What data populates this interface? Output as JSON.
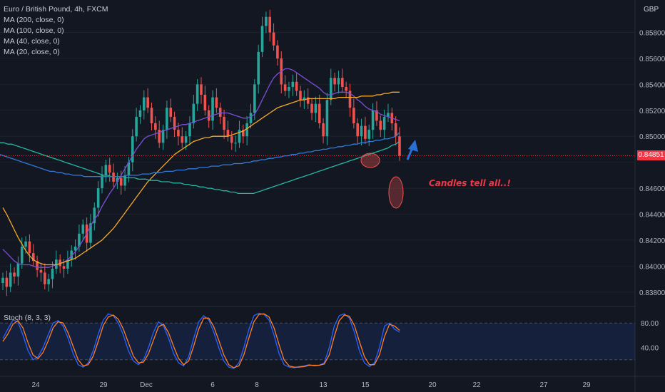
{
  "legend": {
    "title": "Euro / British Pound, 4h, FXCM",
    "indicators": [
      "MA (200, close, 0)",
      "MA (100, close, 0)",
      "MA (40, close, 0)",
      "MA (20, close, 0)"
    ]
  },
  "stoch_label": "Stoch (8, 3, 3)",
  "annotation": "Candles tell all..!",
  "currency": "GBP",
  "current_price": "0.84851",
  "colors": {
    "background": "#131722",
    "up": "#26a69a",
    "down": "#ef5350",
    "ma200": "#2f7bd9",
    "ma100": "#26b5a0",
    "ma40": "#f7a928",
    "ma20": "#7b4fd6",
    "stoch_k": "#2962ff",
    "stoch_d": "#ff7f2a",
    "annotation": "#f23645",
    "arrow": "#2a6fd6"
  },
  "chart_data": {
    "type": "candlestick",
    "price_axis": {
      "ticks": [
        "0.85800",
        "0.85600",
        "0.85400",
        "0.85200",
        "0.85000",
        "0.84800",
        "0.84600",
        "0.84400",
        "0.84200",
        "0.84000",
        "0.83800"
      ],
      "range": [
        0.837,
        0.8605
      ]
    },
    "x_axis": {
      "ticks": [
        "24",
        "29",
        "Dec",
        "6",
        "8",
        "13",
        "15",
        "20",
        "22",
        "27",
        "29"
      ]
    },
    "current_price": 0.84851,
    "closes": [
      0.8391,
      0.8384,
      0.8395,
      0.8392,
      0.8402,
      0.8415,
      0.8419,
      0.841,
      0.8404,
      0.8397,
      0.8395,
      0.8386,
      0.839,
      0.8398,
      0.8405,
      0.84,
      0.8398,
      0.8405,
      0.8412,
      0.8415,
      0.8425,
      0.8432,
      0.8418,
      0.8433,
      0.8445,
      0.846,
      0.847,
      0.8478,
      0.8472,
      0.8465,
      0.8468,
      0.8462,
      0.847,
      0.848,
      0.85,
      0.8515,
      0.852,
      0.853,
      0.8522,
      0.851,
      0.8505,
      0.8495,
      0.8505,
      0.8522,
      0.8515,
      0.8505,
      0.85,
      0.8495,
      0.85,
      0.851,
      0.8525,
      0.854,
      0.8532,
      0.852,
      0.8512,
      0.853,
      0.8522,
      0.8515,
      0.8505,
      0.85,
      0.8495,
      0.8495,
      0.8505,
      0.85,
      0.851,
      0.8518,
      0.854,
      0.8565,
      0.8585,
      0.8592,
      0.858,
      0.857,
      0.856,
      0.854,
      0.8535,
      0.8538,
      0.8542,
      0.8535,
      0.8528,
      0.853,
      0.8525,
      0.8518,
      0.8525,
      0.851,
      0.85,
      0.8528,
      0.8545,
      0.854,
      0.8545,
      0.8538,
      0.8535,
      0.8522,
      0.851,
      0.85,
      0.8508,
      0.8498,
      0.8505,
      0.852,
      0.8512,
      0.8505,
      0.8515,
      0.8518,
      0.851,
      0.85,
      0.8485
    ],
    "series": [
      {
        "name": "MA (20, close, 0)",
        "values": [
          0.8413,
          0.841,
          0.8407,
          0.8404,
          0.8402,
          0.8401,
          0.8401,
          0.8401,
          0.84,
          0.8399,
          0.8399,
          0.8399,
          0.8399,
          0.84,
          0.8401,
          0.8402,
          0.8403,
          0.8405,
          0.8408,
          0.8411,
          0.8415,
          0.842,
          0.8425,
          0.8431,
          0.8436,
          0.844,
          0.8446,
          0.8451,
          0.8456,
          0.846,
          0.8465,
          0.847,
          0.8475,
          0.848,
          0.8485,
          0.849,
          0.8494,
          0.8498,
          0.85,
          0.8501,
          0.8502,
          0.8503,
          0.8504,
          0.8505,
          0.8506,
          0.8507,
          0.8508,
          0.8509,
          0.8509,
          0.851,
          0.8511,
          0.8512,
          0.8513,
          0.8514,
          0.8515,
          0.8516,
          0.8517,
          0.8518,
          0.8518,
          0.8518,
          0.8517,
          0.8516,
          0.8515,
          0.8514,
          0.8514,
          0.8515,
          0.8517,
          0.8522,
          0.8528,
          0.8534,
          0.854,
          0.8545,
          0.8548,
          0.855,
          0.8552,
          0.8552,
          0.8551,
          0.8549,
          0.8547,
          0.8545,
          0.8543,
          0.8541,
          0.8539,
          0.8537,
          0.8534,
          0.8532,
          0.8532,
          0.8533,
          0.8534,
          0.8534,
          0.8534,
          0.8533,
          0.8531,
          0.8528,
          0.8526,
          0.8523,
          0.8521,
          0.852,
          0.8519,
          0.8517,
          0.8516,
          0.8515,
          0.8514,
          0.8513,
          0.8512
        ]
      },
      {
        "name": "MA (40, close, 0)",
        "values": [
          0.8445,
          0.844,
          0.8434,
          0.8428,
          0.8422,
          0.8417,
          0.8412,
          0.8408,
          0.8405,
          0.8403,
          0.8402,
          0.8401,
          0.8401,
          0.8401,
          0.8401,
          0.8402,
          0.8403,
          0.8404,
          0.8405,
          0.8406,
          0.8408,
          0.841,
          0.8412,
          0.8414,
          0.8416,
          0.8418,
          0.842,
          0.8423,
          0.8426,
          0.8429,
          0.8433,
          0.8437,
          0.8441,
          0.8445,
          0.8449,
          0.8453,
          0.8457,
          0.8461,
          0.8465,
          0.8468,
          0.8471,
          0.8474,
          0.8477,
          0.848,
          0.8483,
          0.8486,
          0.8488,
          0.849,
          0.8492,
          0.8494,
          0.8496,
          0.8497,
          0.8498,
          0.8499,
          0.8499,
          0.85,
          0.85,
          0.85,
          0.85,
          0.85,
          0.8501,
          0.8502,
          0.8503,
          0.8504,
          0.8506,
          0.8508,
          0.851,
          0.8512,
          0.8514,
          0.8516,
          0.8518,
          0.852,
          0.8522,
          0.8523,
          0.8524,
          0.8525,
          0.8526,
          0.8527,
          0.8528,
          0.8528,
          0.8529,
          0.8529,
          0.8529,
          0.8529,
          0.8529,
          0.8529,
          0.8529,
          0.8529,
          0.853,
          0.853,
          0.853,
          0.853,
          0.853,
          0.853,
          0.8531,
          0.8531,
          0.8531,
          0.8531,
          0.8532,
          0.8532,
          0.8533,
          0.8533,
          0.8534,
          0.8534,
          0.8534
        ]
      },
      {
        "name": "MA (100, close, 0)",
        "values": [
          0.8495,
          0.8495,
          0.8494,
          0.8494,
          0.8493,
          0.8492,
          0.8491,
          0.849,
          0.8489,
          0.8488,
          0.8487,
          0.8486,
          0.8485,
          0.8484,
          0.8483,
          0.8482,
          0.8481,
          0.848,
          0.8479,
          0.8478,
          0.8477,
          0.8476,
          0.8475,
          0.8474,
          0.8473,
          0.8472,
          0.8471,
          0.847,
          0.847,
          0.8469,
          0.8469,
          0.8469,
          0.8469,
          0.8468,
          0.8468,
          0.8468,
          0.8467,
          0.8467,
          0.8467,
          0.8466,
          0.8466,
          0.8466,
          0.8465,
          0.8465,
          0.8465,
          0.8464,
          0.8464,
          0.8464,
          0.8463,
          0.8463,
          0.8462,
          0.8462,
          0.8461,
          0.8461,
          0.846,
          0.846,
          0.8459,
          0.8459,
          0.8458,
          0.8458,
          0.8457,
          0.8457,
          0.8456,
          0.8456,
          0.8456,
          0.8456,
          0.8456,
          0.8457,
          0.8458,
          0.8459,
          0.846,
          0.8461,
          0.8462,
          0.8463,
          0.8464,
          0.8465,
          0.8466,
          0.8467,
          0.8468,
          0.8469,
          0.847,
          0.8471,
          0.8472,
          0.8473,
          0.8474,
          0.8475,
          0.8476,
          0.8477,
          0.8478,
          0.8479,
          0.848,
          0.8481,
          0.8482,
          0.8483,
          0.8484,
          0.8485,
          0.8486,
          0.8487,
          0.8488,
          0.8489,
          0.849,
          0.8491,
          0.8493,
          0.8494,
          0.8496
        ]
      },
      {
        "name": "MA (200, close, 0)",
        "values": [
          0.8486,
          0.8485,
          0.8484,
          0.8483,
          0.8482,
          0.8481,
          0.848,
          0.8479,
          0.8478,
          0.8477,
          0.8476,
          0.8475,
          0.8474,
          0.8473,
          0.8473,
          0.8472,
          0.8472,
          0.8471,
          0.8471,
          0.847,
          0.847,
          0.847,
          0.8469,
          0.8469,
          0.8469,
          0.8469,
          0.8469,
          0.8469,
          0.8469,
          0.8469,
          0.8469,
          0.8469,
          0.8469,
          0.847,
          0.847,
          0.847,
          0.847,
          0.8471,
          0.8471,
          0.8471,
          0.8472,
          0.8472,
          0.8472,
          0.8473,
          0.8473,
          0.8473,
          0.8474,
          0.8474,
          0.8474,
          0.8475,
          0.8475,
          0.8475,
          0.8476,
          0.8476,
          0.8476,
          0.8477,
          0.8477,
          0.8477,
          0.8478,
          0.8478,
          0.8478,
          0.8479,
          0.8479,
          0.8479,
          0.848,
          0.848,
          0.8481,
          0.8481,
          0.8482,
          0.8482,
          0.8483,
          0.8483,
          0.8484,
          0.8484,
          0.8485,
          0.8485,
          0.8486,
          0.8486,
          0.8487,
          0.8487,
          0.8488,
          0.8488,
          0.8489,
          0.8489,
          0.849,
          0.849,
          0.8491,
          0.8491,
          0.8492,
          0.8492,
          0.8493,
          0.8493,
          0.8494,
          0.8494,
          0.8495,
          0.8495,
          0.8496,
          0.8496,
          0.8497,
          0.8497,
          0.8498,
          0.8498,
          0.8499,
          0.85,
          0.8503
        ]
      }
    ],
    "stochastic": {
      "range": [
        0,
        100
      ],
      "levels": [
        80,
        20
      ],
      "ticks": [
        "80.00",
        "40.00"
      ],
      "k": [
        55,
        70,
        85,
        82,
        60,
        35,
        20,
        25,
        40,
        60,
        80,
        84,
        75,
        55,
        30,
        12,
        8,
        15,
        35,
        62,
        85,
        95,
        92,
        80,
        60,
        35,
        18,
        12,
        20,
        40,
        65,
        82,
        75,
        55,
        30,
        15,
        10,
        25,
        55,
        82,
        92,
        85,
        65,
        40,
        18,
        8,
        6,
        15,
        40,
        70,
        92,
        96,
        94,
        85,
        60,
        30,
        12,
        8,
        7,
        9,
        10,
        12,
        10,
        11,
        15,
        40,
        75,
        92,
        95,
        88,
        65,
        35,
        15,
        9,
        15,
        40,
        75,
        80,
        70,
        65
      ],
      "d": [
        50,
        62,
        78,
        84,
        72,
        48,
        28,
        22,
        32,
        50,
        72,
        82,
        80,
        64,
        42,
        20,
        10,
        12,
        26,
        50,
        76,
        90,
        93,
        86,
        70,
        48,
        26,
        15,
        16,
        30,
        52,
        74,
        78,
        64,
        42,
        22,
        12,
        18,
        42,
        70,
        88,
        88,
        74,
        52,
        28,
        12,
        7,
        10,
        28,
        56,
        82,
        94,
        95,
        90,
        72,
        45,
        20,
        10,
        8,
        8,
        9,
        11,
        11,
        11,
        13,
        28,
        58,
        84,
        93,
        91,
        76,
        50,
        25,
        12,
        12,
        28,
        58,
        78,
        75,
        68
      ]
    }
  }
}
